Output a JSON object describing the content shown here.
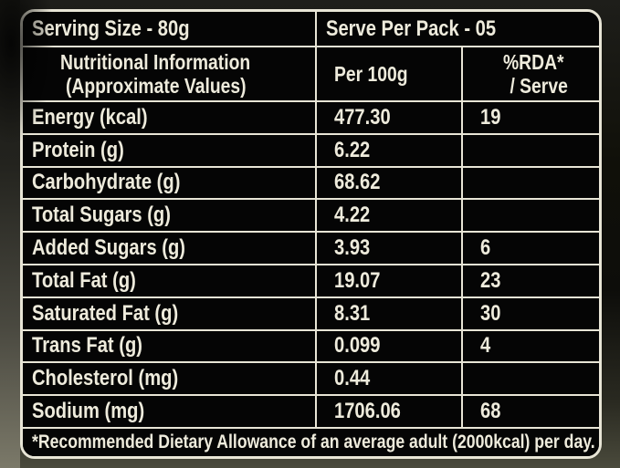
{
  "label": {
    "serving_size": "Serving Size - 80g",
    "serve_per_pack": "Serve Per Pack - 05",
    "header": {
      "info_line1": "Nutritional Information",
      "info_line2": "(Approximate Values)",
      "per_100g": "Per 100g",
      "rda_line1": "%RDA*",
      "rda_line2": "/ Serve"
    },
    "rows": [
      {
        "label": "Energy (kcal)",
        "per100g": "477.30",
        "rda": "19"
      },
      {
        "label": "Protein (g)",
        "per100g": "6.22",
        "rda": ""
      },
      {
        "label": "Carbohydrate (g)",
        "per100g": "68.62",
        "rda": ""
      },
      {
        "label": "Total Sugars (g)",
        "per100g": "4.22",
        "rda": ""
      },
      {
        "label": "Added Sugars (g)",
        "per100g": "3.93",
        "rda": "6"
      },
      {
        "label": "Total Fat (g)",
        "per100g": "19.07",
        "rda": "23"
      },
      {
        "label": "Saturated Fat (g)",
        "per100g": "8.31",
        "rda": "30"
      },
      {
        "label": "Trans Fat (g)",
        "per100g": "0.099",
        "rda": "4"
      },
      {
        "label": "Cholesterol (mg)",
        "per100g": "0.44",
        "rda": ""
      },
      {
        "label": "Sodium (mg)",
        "per100g": "1706.06",
        "rda": "68"
      }
    ],
    "footnote": "*Recommended Dietary Allowance of an average adult (2000kcal) per day.",
    "colors": {
      "text": "#eeebdc",
      "line": "#e8e5d6",
      "cell_bg": "#050505"
    }
  }
}
